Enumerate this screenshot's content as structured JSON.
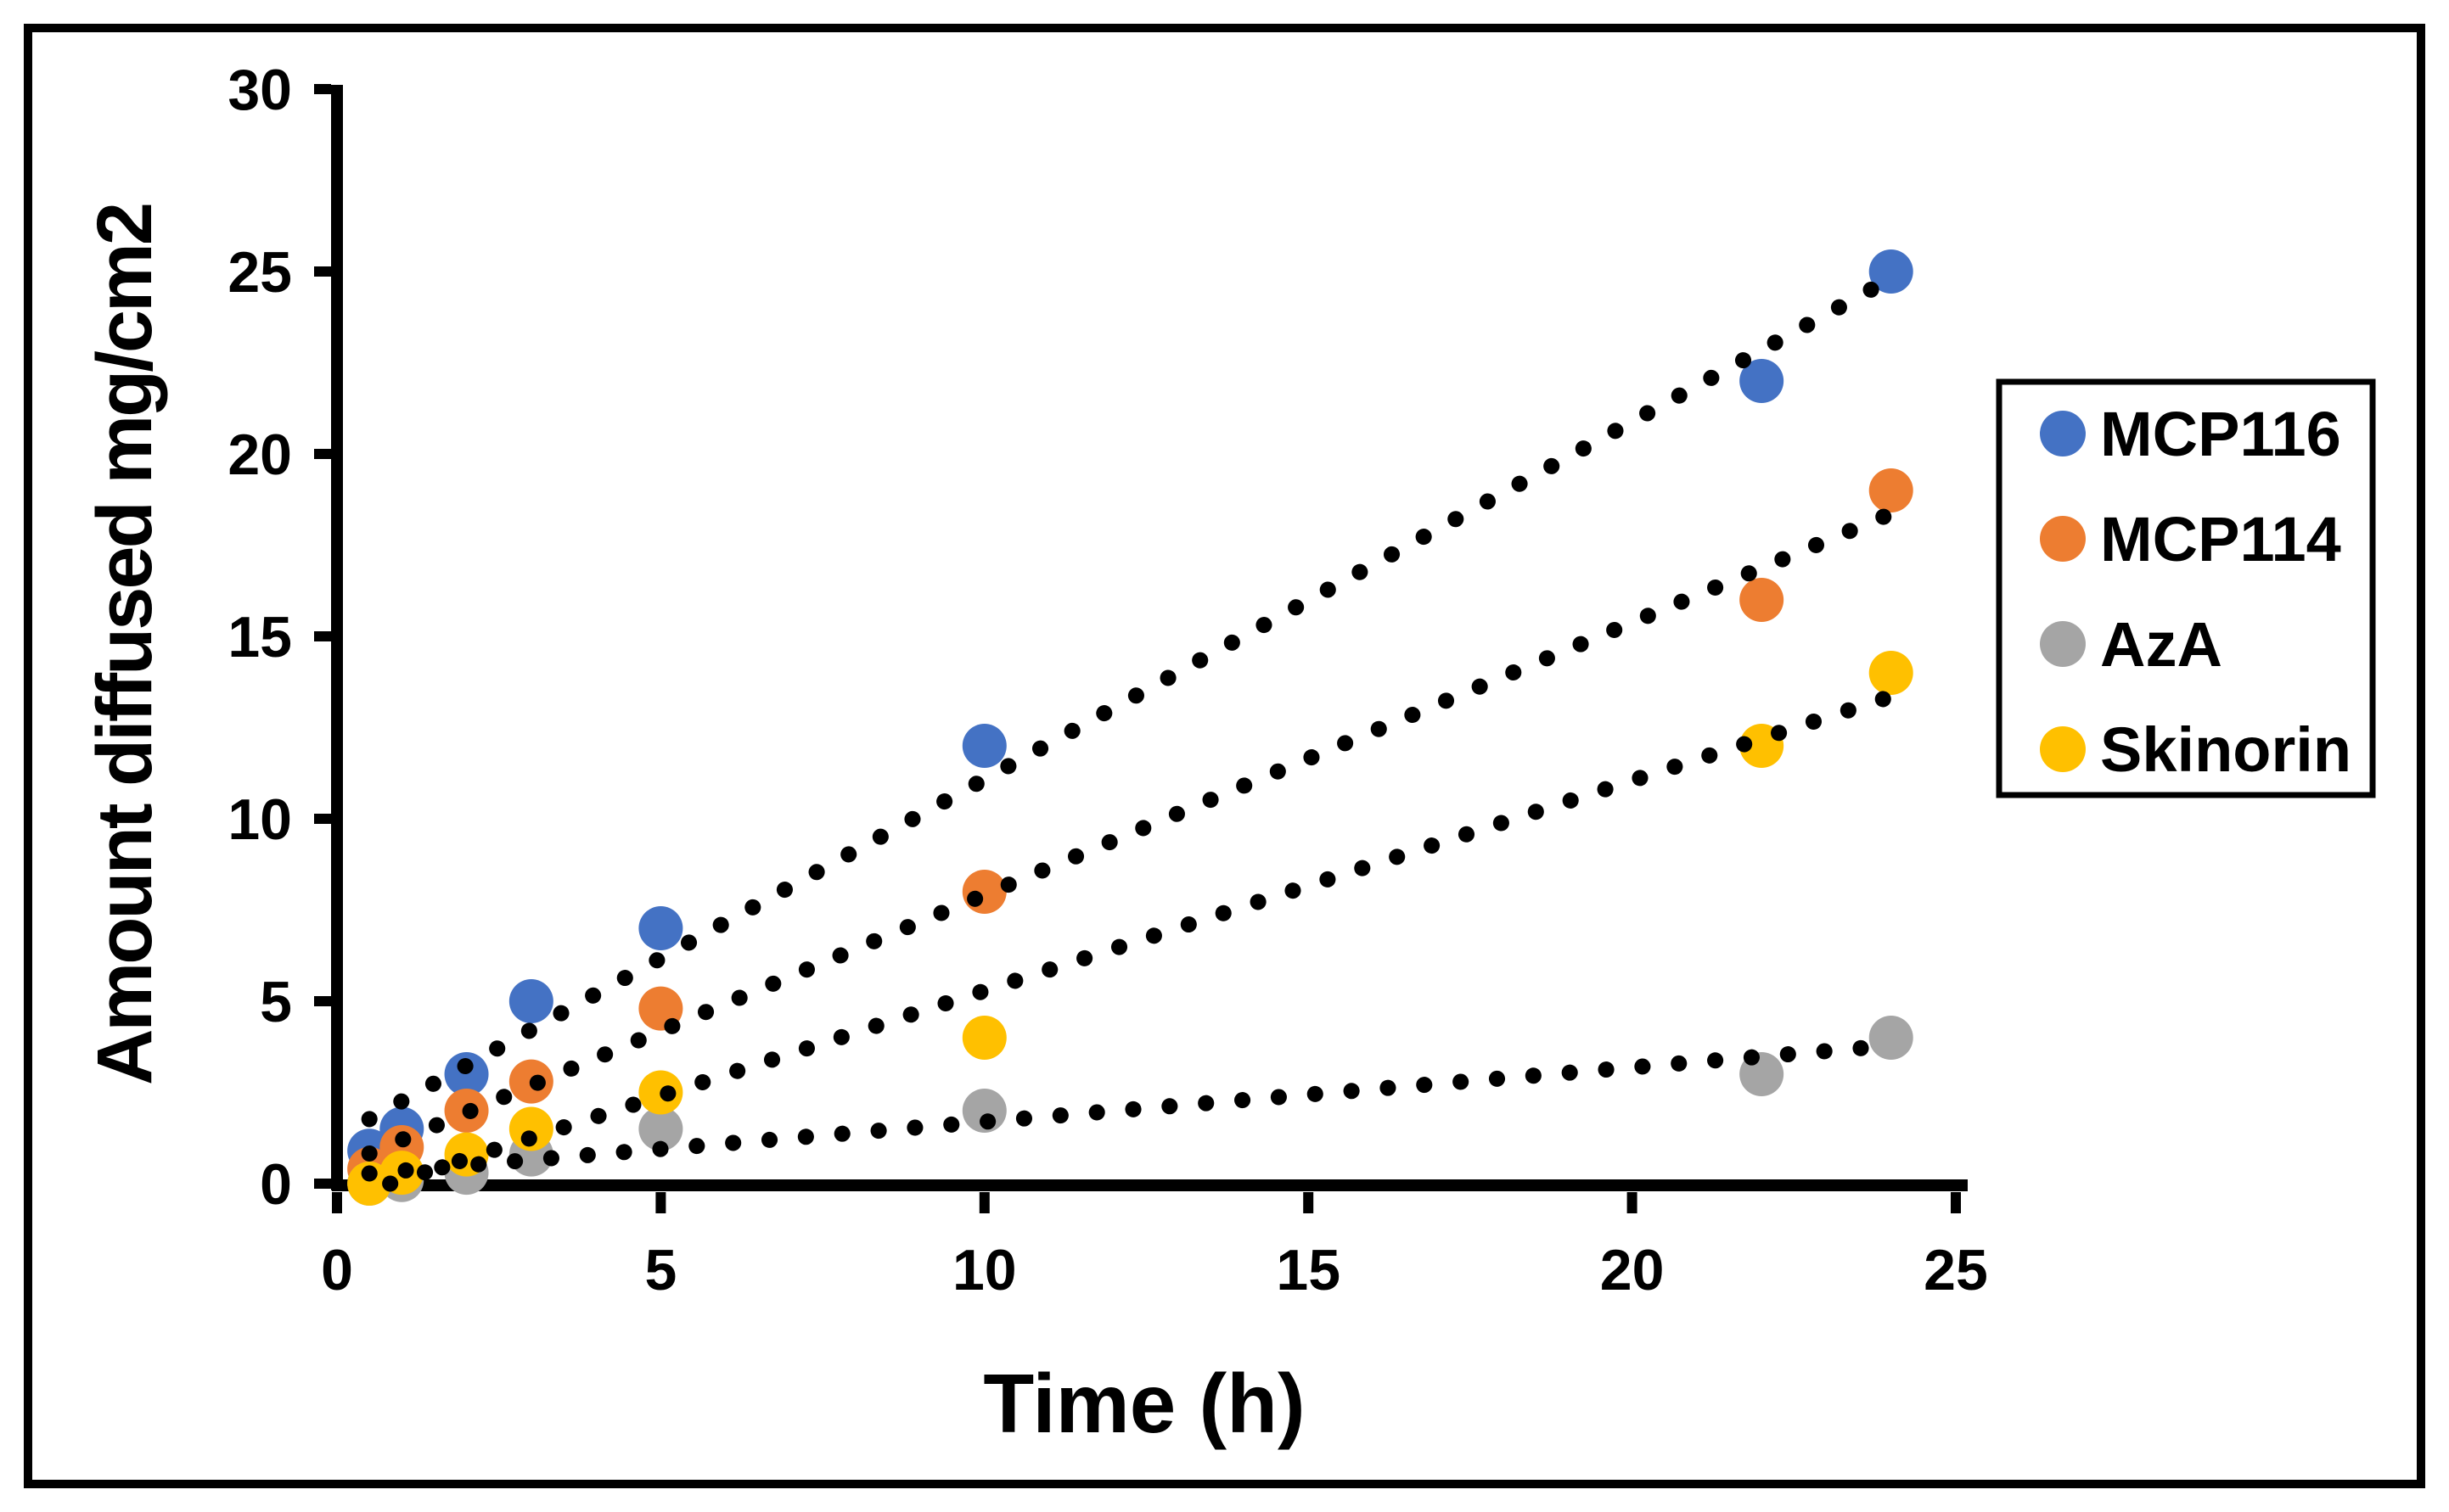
{
  "figure": {
    "background": "#ffffff",
    "border_color": "#000000",
    "axis_color": "#000000"
  },
  "chart_data": {
    "type": "scatter",
    "title": "",
    "xlabel": "Time (h)",
    "ylabel": "Amount diffused mg/cm2",
    "x": [
      0.5,
      1,
      2,
      3,
      5,
      10,
      22,
      24
    ],
    "series": [
      {
        "name": "MCP116",
        "color": "#4472C4",
        "values": [
          0.9,
          1.5,
          3,
          5,
          7,
          12,
          22,
          25
        ]
      },
      {
        "name": "MCP114",
        "color": "#ED7D31",
        "values": [
          0.4,
          1,
          2,
          2.8,
          4.8,
          8,
          16,
          19
        ]
      },
      {
        "name": "AzA",
        "color": "#A5A5A5",
        "values": [
          0,
          0.1,
          0.3,
          0.8,
          1.5,
          2,
          3,
          4
        ]
      },
      {
        "name": "Skinorin",
        "color": "#FFC000",
        "values": [
          0,
          0.3,
          0.8,
          1.5,
          2.5,
          4,
          12,
          14
        ]
      }
    ],
    "x_ticks": [
      0,
      5,
      10,
      15,
      20,
      25
    ],
    "y_ticks": [
      0,
      5,
      10,
      15,
      20,
      25,
      30
    ],
    "xlim": [
      0,
      25.3
    ],
    "ylim": [
      0,
      30
    ],
    "grid": false,
    "legend_position": "right",
    "trendline": {
      "type": "linear",
      "style": "dotted",
      "color": "#000000"
    }
  }
}
